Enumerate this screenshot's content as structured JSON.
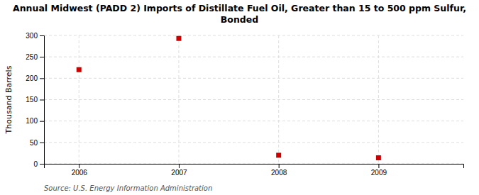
{
  "chart_data": {
    "type": "scatter",
    "title": "Annual Midwest (PADD 2) Imports of Distillate Fuel Oil, Greater than 15 to 500 ppm Sulfur,\nBonded",
    "ylabel": "Thousand Barrels",
    "annotation": "Source: U.S. Energy Information Administration",
    "x": [
      2006,
      2007,
      2008,
      2009
    ],
    "values": [
      220,
      293,
      20,
      14
    ],
    "color": "#cc0000",
    "marker": "square",
    "xlim": [
      2005.65,
      2009.85
    ],
    "xticks": [
      2006,
      2007,
      2008,
      2009
    ],
    "ylim": [
      0,
      300
    ],
    "yticks": [
      0,
      50,
      100,
      150,
      200,
      250,
      300
    ],
    "grid": true
  }
}
